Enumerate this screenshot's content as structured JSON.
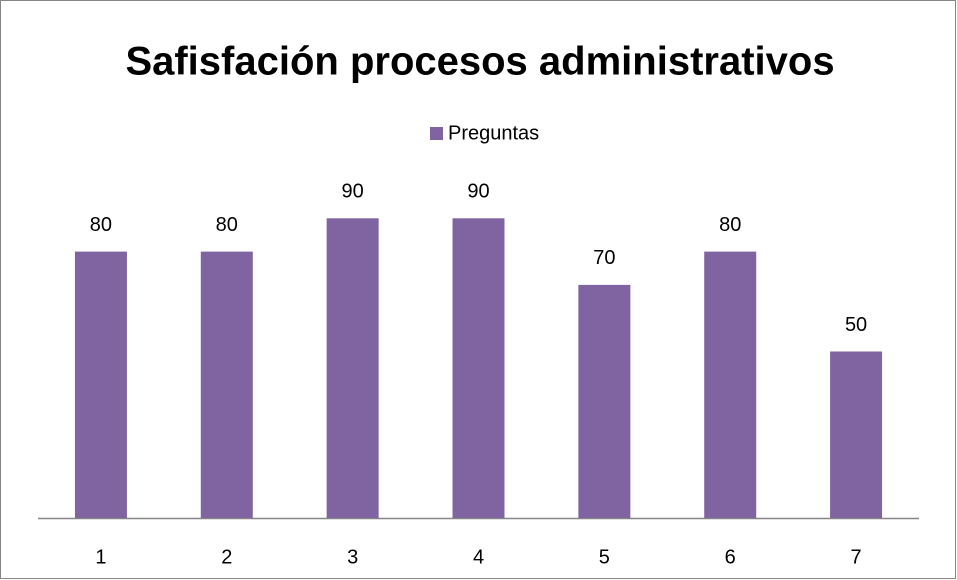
{
  "chart_data": {
    "type": "bar",
    "title": "Safisfación procesos administrativos",
    "categories": [
      "1",
      "2",
      "3",
      "4",
      "5",
      "6",
      "7"
    ],
    "series": [
      {
        "name": "Preguntas",
        "color": "#8064a2",
        "values": [
          80,
          80,
          90,
          90,
          70,
          80,
          50
        ]
      }
    ],
    "ylim": [
      0,
      100
    ],
    "grid": false,
    "legend": "top"
  }
}
